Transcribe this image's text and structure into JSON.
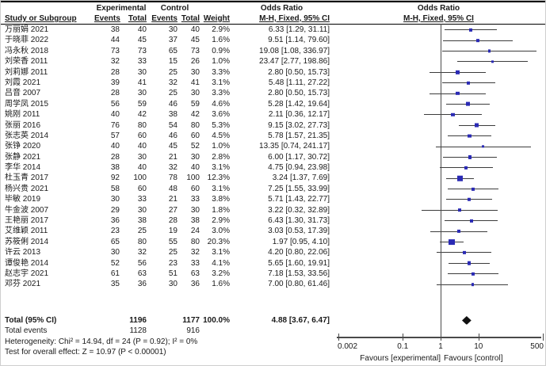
{
  "header": {
    "group_experimental": "Experimental",
    "group_control": "Control",
    "group_or_text": "Odds Ratio",
    "group_or_plot": "Odds Ratio",
    "study": "Study or Subgroup",
    "events_exp": "Events",
    "total_exp": "Total",
    "events_ctl": "Events",
    "total_ctl": "Total",
    "weight": "Weight",
    "mh_text": "M-H, Fixed, 95% CI",
    "mh_plot": "M-H, Fixed, 95% CI"
  },
  "chart_data": {
    "type": "forest",
    "effect_measure": "Odds Ratio",
    "method": "M-H, Fixed, 95% CI",
    "scale": "log10",
    "axis_ticks": [
      "0.002",
      "0.1",
      "1",
      "10",
      "500"
    ],
    "axis_tick_values": [
      0.002,
      0.1,
      1,
      10,
      500
    ],
    "axis_range": [
      0.002,
      500
    ],
    "null_value": 1,
    "favours_left": "Favours [experimental]",
    "favours_right": "Favours [control]",
    "marker_color": "#2a2ab4",
    "diamond_color": "#111111",
    "studies": [
      {
        "study": "万丽娟 2021",
        "events_exp": 38,
        "total_exp": 40,
        "events_ctl": 30,
        "total_ctl": 40,
        "weight": "2.9%",
        "weight_pct": 2.9,
        "or": 6.33,
        "ci_low": 1.29,
        "ci_high": 31.11,
        "or_label": "6.33 [1.29, 31.11]"
      },
      {
        "study": "于晓菲 2022",
        "events_exp": 44,
        "total_exp": 45,
        "events_ctl": 37,
        "total_ctl": 45,
        "weight": "1.6%",
        "weight_pct": 1.6,
        "or": 9.51,
        "ci_low": 1.14,
        "ci_high": 79.6,
        "or_label": "9.51 [1.14, 79.60]"
      },
      {
        "study": "冯永秋 2018",
        "events_exp": 73,
        "total_exp": 73,
        "events_ctl": 65,
        "total_ctl": 73,
        "weight": "0.9%",
        "weight_pct": 0.9,
        "or": 19.08,
        "ci_low": 1.08,
        "ci_high": 336.97,
        "or_label": "19.08 [1.08, 336.97]"
      },
      {
        "study": "刘荣香 2011",
        "events_exp": 32,
        "total_exp": 33,
        "events_ctl": 15,
        "total_ctl": 26,
        "weight": "1.0%",
        "weight_pct": 1.0,
        "or": 23.47,
        "ci_low": 2.77,
        "ci_high": 198.86,
        "or_label": "23.47 [2.77, 198.86]"
      },
      {
        "study": "刘莉娜 2011",
        "events_exp": 28,
        "total_exp": 30,
        "events_ctl": 25,
        "total_ctl": 30,
        "weight": "3.3%",
        "weight_pct": 3.3,
        "or": 2.8,
        "ci_low": 0.5,
        "ci_high": 15.73,
        "or_label": "2.80 [0.50, 15.73]"
      },
      {
        "study": "刘霞 2021",
        "events_exp": 39,
        "total_exp": 41,
        "events_ctl": 32,
        "total_ctl": 41,
        "weight": "3.1%",
        "weight_pct": 3.1,
        "or": 5.48,
        "ci_low": 1.11,
        "ci_high": 27.22,
        "or_label": "5.48 [1.11, 27.22]"
      },
      {
        "study": "吕音 2007",
        "events_exp": 28,
        "total_exp": 30,
        "events_ctl": 25,
        "total_ctl": 30,
        "weight": "3.3%",
        "weight_pct": 3.3,
        "or": 2.8,
        "ci_low": 0.5,
        "ci_high": 15.73,
        "or_label": "2.80 [0.50, 15.73]"
      },
      {
        "study": "周学凤 2015",
        "events_exp": 56,
        "total_exp": 59,
        "events_ctl": 46,
        "total_ctl": 59,
        "weight": "4.6%",
        "weight_pct": 4.6,
        "or": 5.28,
        "ci_low": 1.42,
        "ci_high": 19.64,
        "or_label": "5.28 [1.42, 19.64]"
      },
      {
        "study": "姚刚 2011",
        "events_exp": 40,
        "total_exp": 42,
        "events_ctl": 38,
        "total_ctl": 42,
        "weight": "3.6%",
        "weight_pct": 3.6,
        "or": 2.11,
        "ci_low": 0.36,
        "ci_high": 12.17,
        "or_label": "2.11 [0.36, 12.17]"
      },
      {
        "study": "张丽 2016",
        "events_exp": 76,
        "total_exp": 80,
        "events_ctl": 54,
        "total_ctl": 80,
        "weight": "5.3%",
        "weight_pct": 5.3,
        "or": 9.15,
        "ci_low": 3.02,
        "ci_high": 27.73,
        "or_label": "9.15 [3.02, 27.73]"
      },
      {
        "study": "张志英 2014",
        "events_exp": 57,
        "total_exp": 60,
        "events_ctl": 46,
        "total_ctl": 60,
        "weight": "4.5%",
        "weight_pct": 4.5,
        "or": 5.78,
        "ci_low": 1.57,
        "ci_high": 21.35,
        "or_label": "5.78 [1.57, 21.35]"
      },
      {
        "study": "张铮 2020",
        "events_exp": 40,
        "total_exp": 40,
        "events_ctl": 45,
        "total_ctl": 52,
        "weight": "1.0%",
        "weight_pct": 1.0,
        "or": 13.35,
        "ci_low": 0.74,
        "ci_high": 241.17,
        "or_label": "13.35 [0.74, 241.17]"
      },
      {
        "study": "张静 2021",
        "events_exp": 28,
        "total_exp": 30,
        "events_ctl": 21,
        "total_ctl": 30,
        "weight": "2.8%",
        "weight_pct": 2.8,
        "or": 6.0,
        "ci_low": 1.17,
        "ci_high": 30.72,
        "or_label": "6.00 [1.17, 30.72]"
      },
      {
        "study": "李华 2014",
        "events_exp": 38,
        "total_exp": 40,
        "events_ctl": 32,
        "total_ctl": 40,
        "weight": "3.1%",
        "weight_pct": 3.1,
        "or": 4.75,
        "ci_low": 0.94,
        "ci_high": 23.98,
        "or_label": "4.75 [0.94, 23.98]"
      },
      {
        "study": "杜玉青 2017",
        "events_exp": 92,
        "total_exp": 100,
        "events_ctl": 78,
        "total_ctl": 100,
        "weight": "12.3%",
        "weight_pct": 12.3,
        "or": 3.24,
        "ci_low": 1.37,
        "ci_high": 7.69,
        "or_label": "3.24 [1.37, 7.69]"
      },
      {
        "study": "杨兴贵 2021",
        "events_exp": 58,
        "total_exp": 60,
        "events_ctl": 48,
        "total_ctl": 60,
        "weight": "3.1%",
        "weight_pct": 3.1,
        "or": 7.25,
        "ci_low": 1.55,
        "ci_high": 33.99,
        "or_label": "7.25 [1.55, 33.99]"
      },
      {
        "study": "毕敏 2019",
        "events_exp": 30,
        "total_exp": 33,
        "events_ctl": 21,
        "total_ctl": 33,
        "weight": "3.8%",
        "weight_pct": 3.8,
        "or": 5.71,
        "ci_low": 1.43,
        "ci_high": 22.77,
        "or_label": "5.71 [1.43, 22.77]"
      },
      {
        "study": "牛金波 2007",
        "events_exp": 29,
        "total_exp": 30,
        "events_ctl": 27,
        "total_ctl": 30,
        "weight": "1.8%",
        "weight_pct": 1.8,
        "or": 3.22,
        "ci_low": 0.32,
        "ci_high": 32.89,
        "or_label": "3.22 [0.32, 32.89]"
      },
      {
        "study": "王艳丽 2017",
        "events_exp": 36,
        "total_exp": 38,
        "events_ctl": 28,
        "total_ctl": 38,
        "weight": "2.9%",
        "weight_pct": 2.9,
        "or": 6.43,
        "ci_low": 1.3,
        "ci_high": 31.73,
        "or_label": "6.43 [1.30, 31.73]"
      },
      {
        "study": "艾维颖 2011",
        "events_exp": 23,
        "total_exp": 25,
        "events_ctl": 19,
        "total_ctl": 24,
        "weight": "3.0%",
        "weight_pct": 3.0,
        "or": 3.03,
        "ci_low": 0.53,
        "ci_high": 17.39,
        "or_label": "3.03 [0.53, 17.39]"
      },
      {
        "study": "苏筱俐 2014",
        "events_exp": 65,
        "total_exp": 80,
        "events_ctl": 55,
        "total_ctl": 80,
        "weight": "20.3%",
        "weight_pct": 20.3,
        "or": 1.97,
        "ci_low": 0.95,
        "ci_high": 4.1,
        "or_label": "1.97 [0.95, 4.10]"
      },
      {
        "study": "许云 2013",
        "events_exp": 30,
        "total_exp": 32,
        "events_ctl": 25,
        "total_ctl": 32,
        "weight": "3.1%",
        "weight_pct": 3.1,
        "or": 4.2,
        "ci_low": 0.8,
        "ci_high": 22.06,
        "or_label": "4.20 [0.80, 22.06]"
      },
      {
        "study": "谭俊艳 2014",
        "events_exp": 52,
        "total_exp": 56,
        "events_ctl": 23,
        "total_ctl": 33,
        "weight": "4.1%",
        "weight_pct": 4.1,
        "or": 5.65,
        "ci_low": 1.6,
        "ci_high": 19.91,
        "or_label": "5.65 [1.60, 19.91]"
      },
      {
        "study": "赵志宇 2021",
        "events_exp": 61,
        "total_exp": 63,
        "events_ctl": 51,
        "total_ctl": 63,
        "weight": "3.2%",
        "weight_pct": 3.2,
        "or": 7.18,
        "ci_low": 1.53,
        "ci_high": 33.56,
        "or_label": "7.18 [1.53, 33.56]"
      },
      {
        "study": "邓芬 2021",
        "events_exp": 35,
        "total_exp": 36,
        "events_ctl": 30,
        "total_ctl": 36,
        "weight": "1.6%",
        "weight_pct": 1.6,
        "or": 7.0,
        "ci_low": 0.8,
        "ci_high": 61.46,
        "or_label": "7.00 [0.80, 61.46]"
      }
    ],
    "total": {
      "label": "Total (95% CI)",
      "total_exp": "1196",
      "total_ctl": "1177",
      "weight": "100.0%",
      "or": 4.88,
      "ci_low": 3.67,
      "ci_high": 6.47,
      "or_label": "4.88 [3.67, 6.47]"
    }
  },
  "footer": {
    "total_events_label": "Total events",
    "total_events_exp": "1128",
    "total_events_ctl": "916",
    "heterogeneity": "Heterogeneity: Chi² = 14.94, df = 24 (P = 0.92); I² = 0%",
    "overall_effect": "Test for overall effect: Z = 10.97 (P < 0.00001)"
  }
}
